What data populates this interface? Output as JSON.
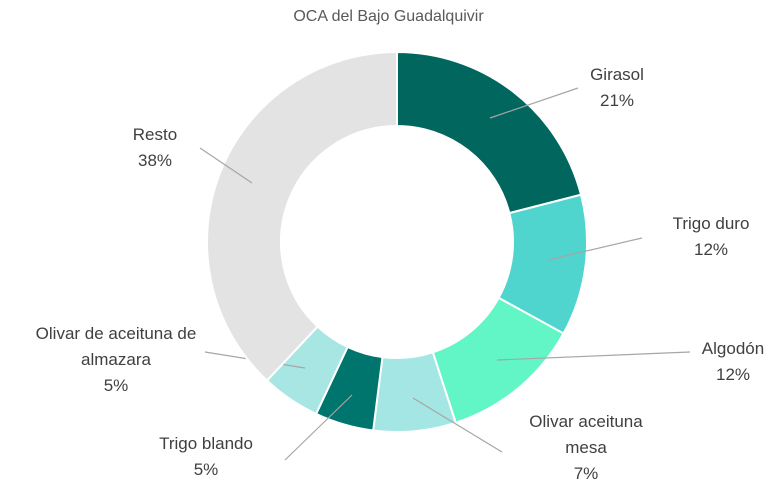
{
  "chart_data": {
    "type": "pie",
    "title": "OCA del Bajo Guadalquivir",
    "categories": [
      "Girasol",
      "Trigo duro",
      "Algodón",
      "Olivar aceituna mesa",
      "Trigo blando",
      "Olivar de aceituna de almazara",
      "Resto"
    ],
    "values": [
      21,
      12,
      12,
      7,
      5,
      5,
      38
    ],
    "value_labels": [
      "21%",
      "12%",
      "12%",
      "7%",
      "5%",
      "5%",
      "38%"
    ],
    "colors": [
      "#00665e",
      "#4fd4ce",
      "#62f5c6",
      "#a3e6e4",
      "#00756d",
      "#a8e6e3",
      "#e3e3e3"
    ]
  }
}
